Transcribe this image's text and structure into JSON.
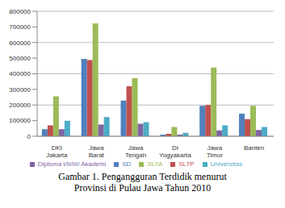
{
  "chart_data": {
    "type": "bar",
    "title": "Gambar 1. Pengangguran Terdidik menurut Provinsi di Pulau Jawa Tahun 2010",
    "categories": [
      "DKI Jakarta",
      "Jawa Barat",
      "Jawa Tengah",
      "DI Yogyakarta",
      "Jawa Timur",
      "Banten"
    ],
    "series": [
      {
        "name": "SD",
        "color": "#4f81bd",
        "values": [
          45000,
          495000,
          228000,
          10000,
          195000,
          145000
        ]
      },
      {
        "name": "SLTP",
        "color": "#c0504d",
        "values": [
          70000,
          488000,
          320000,
          15000,
          200000,
          110000
        ]
      },
      {
        "name": "SLTA",
        "color": "#9bbb59",
        "values": [
          255000,
          722000,
          372000,
          60000,
          440000,
          195000
        ]
      },
      {
        "name": "Diploma I/II/III/ Akademi",
        "color": "#8064a2",
        "values": [
          45000,
          75000,
          80000,
          10000,
          38000,
          40000
        ]
      },
      {
        "name": "Universitas",
        "color": "#4bacc6",
        "values": [
          100000,
          122000,
          90000,
          22000,
          70000,
          60000
        ]
      }
    ],
    "ylim": [
      0,
      800000
    ],
    "yticks": [
      0,
      100000,
      200000,
      300000,
      400000,
      500000,
      600000,
      700000,
      800000
    ],
    "grid": true,
    "legend": "bottom"
  }
}
